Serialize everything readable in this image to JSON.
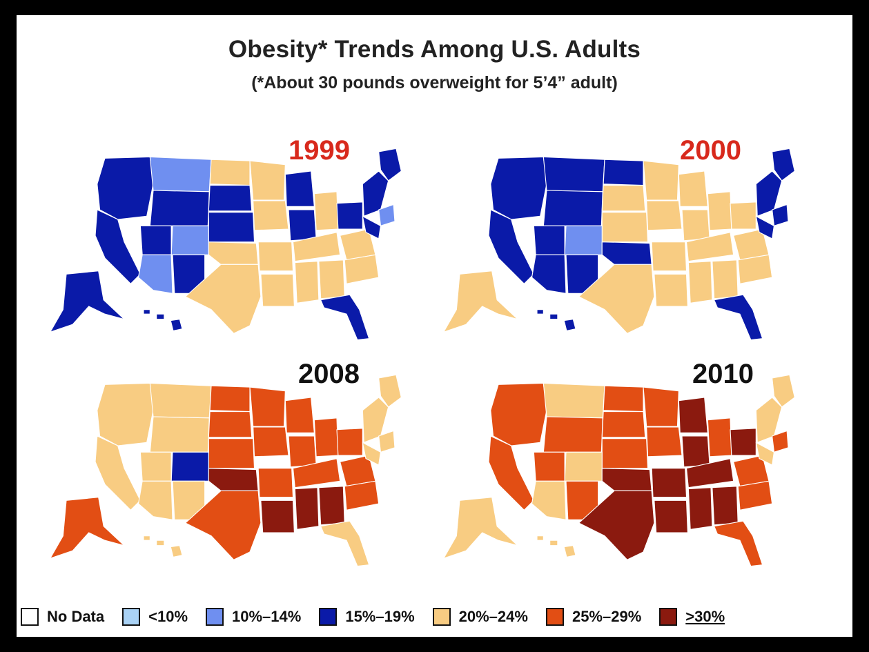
{
  "title": "Obesity* Trends Among U.S. Adults",
  "subtitle": "(*About 30 pounds overweight for 5’4” adult)",
  "colors": {
    "nodata": "#ffffff",
    "lt10": "#a9d2f5",
    "r10_14": "#6f8ff0",
    "r15_19": "#0a1aa8",
    "r20_24": "#f8cc82",
    "r25_29": "#e24e14",
    "gte30": "#8b1a0f"
  },
  "maps": [
    {
      "year": "1999",
      "year_color": "#d8291c",
      "classes": {
        "nw": "r15_19",
        "mt": "r10_14",
        "nd": "r20_24",
        "sw": "r10_14",
        "co": "r10_14",
        "plains": "r15_19",
        "mw": "r20_24",
        "mw2": "r15_19",
        "south": "r20_24",
        "se": "r20_24",
        "ne": "r15_19",
        "ne2": "r10_14",
        "fl": "r15_19",
        "tx": "r20_24",
        "ok": "r20_24",
        "ak": "r15_19",
        "hi": "r15_19",
        "deep": "r20_24"
      }
    },
    {
      "year": "2000",
      "year_color": "#d8291c",
      "classes": {
        "nw": "r15_19",
        "mt": "r15_19",
        "nd": "r15_19",
        "sw": "r15_19",
        "co": "r10_14",
        "plains": "r20_24",
        "mw": "r20_24",
        "mw2": "r20_24",
        "south": "r20_24",
        "se": "r20_24",
        "ne": "r15_19",
        "ne2": "r15_19",
        "fl": "r15_19",
        "tx": "r20_24",
        "ok": "r15_19",
        "ak": "r20_24",
        "hi": "r15_19",
        "deep": "r20_24"
      }
    },
    {
      "year": "2008",
      "year_color": "#111111",
      "classes": {
        "nw": "r20_24",
        "mt": "r20_24",
        "nd": "r25_29",
        "sw": "r20_24",
        "co": "r15_19",
        "plains": "r25_29",
        "mw": "r25_29",
        "mw2": "r25_29",
        "south": "r25_29",
        "se": "r25_29",
        "ne": "r20_24",
        "ne2": "r20_24",
        "fl": "r20_24",
        "tx": "r25_29",
        "ok": "gte30",
        "ak": "r25_29",
        "hi": "r20_24",
        "deep": "gte30"
      }
    },
    {
      "year": "2010",
      "year_color": "#111111",
      "classes": {
        "nw": "r25_29",
        "mt": "r20_24",
        "nd": "r25_29",
        "sw": "r20_24",
        "co": "r20_24",
        "plains": "r25_29",
        "mw": "r25_29",
        "mw2": "gte30",
        "south": "gte30",
        "se": "r25_29",
        "ne": "r20_24",
        "ne2": "r25_29",
        "fl": "r25_29",
        "tx": "gte30",
        "ok": "gte30",
        "ak": "r20_24",
        "hi": "r20_24",
        "deep": "gte30"
      }
    }
  ],
  "legend": [
    {
      "key": "nodata",
      "label": "No Data"
    },
    {
      "key": "lt10",
      "label": "<10%"
    },
    {
      "key": "r10_14",
      "label": "10%–14%"
    },
    {
      "key": "r15_19",
      "label": "15%–19%"
    },
    {
      "key": "r20_24",
      "label": "20%–24%"
    },
    {
      "key": "r25_29",
      "label": "25%–29%"
    },
    {
      "key": "gte30",
      "label": ">30%"
    }
  ]
}
